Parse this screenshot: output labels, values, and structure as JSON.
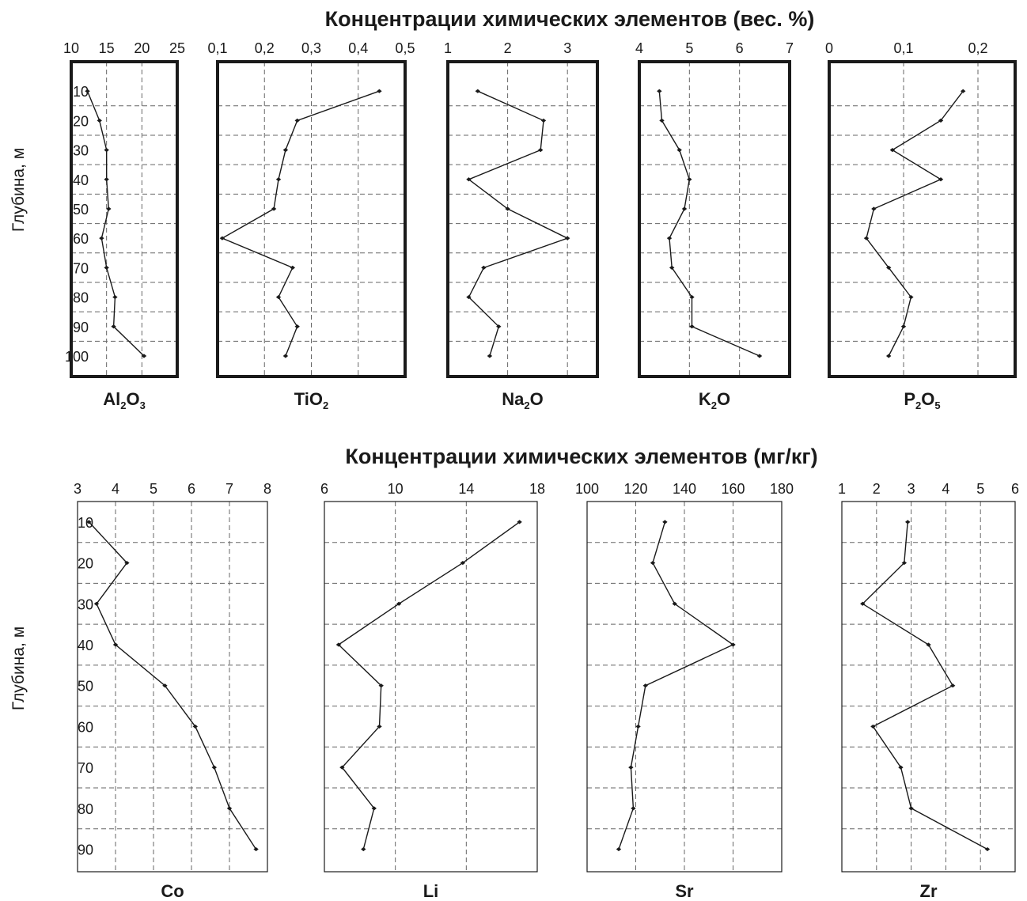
{
  "chart_data": [
    {
      "type": "line",
      "title": "Концентрации  химических элементов (вес. %)",
      "ylabel": "Глубина, м",
      "y_ticks": [
        "10",
        "20",
        "30",
        "40",
        "50",
        "60",
        "70",
        "80",
        "90",
        "100"
      ],
      "y_values": [
        10,
        20,
        30,
        40,
        50,
        60,
        70,
        80,
        90,
        100
      ],
      "ylim": [
        0,
        107
      ],
      "y_inverted": true,
      "grid": true,
      "panels": [
        {
          "id": "al2o3",
          "name": "Al2O3",
          "name_base": "Al",
          "name_parts": [
            [
              "Al",
              0
            ],
            [
              "2",
              1
            ],
            [
              "O",
              0
            ],
            [
              "3",
              1
            ]
          ],
          "xlim": [
            10,
            25
          ],
          "x_ticks": [
            "10",
            "15",
            "20",
            "25"
          ],
          "x_tick_values": [
            10,
            15,
            20,
            25
          ],
          "x": [
            12.3,
            14.0,
            15.0,
            15.0,
            15.3,
            14.3,
            15.0,
            16.2,
            16.0,
            20.3
          ]
        },
        {
          "id": "tio2",
          "name": "TiO2",
          "name_parts": [
            [
              "TiO",
              0
            ],
            [
              "2",
              1
            ]
          ],
          "xlim": [
            0.1,
            0.5
          ],
          "x_ticks": [
            "0,1",
            "0,2",
            "0,3",
            "0,4",
            "0,5"
          ],
          "x_tick_values": [
            0.1,
            0.2,
            0.3,
            0.4,
            0.5
          ],
          "x": [
            0.445,
            0.27,
            0.245,
            0.23,
            0.22,
            0.11,
            0.26,
            0.23,
            0.27,
            0.245
          ]
        },
        {
          "id": "na2o",
          "name": "Na2O",
          "name_parts": [
            [
              "Na",
              0
            ],
            [
              "2",
              1
            ],
            [
              "O",
              0
            ]
          ],
          "xlim": [
            1,
            3.5
          ],
          "x_ticks": [
            "1",
            "2",
            "3"
          ],
          "x_tick_values": [
            1,
            2,
            3
          ],
          "x": [
            1.5,
            2.6,
            2.55,
            1.35,
            2.0,
            3.0,
            1.6,
            1.35,
            1.85,
            1.7
          ]
        },
        {
          "id": "k2o",
          "name": "K2O",
          "name_parts": [
            [
              "K",
              0
            ],
            [
              "2",
              1
            ],
            [
              "O",
              0
            ]
          ],
          "xlim": [
            4,
            7
          ],
          "x_ticks": [
            "4",
            "5",
            "6",
            "7"
          ],
          "x_tick_values": [
            4,
            5,
            6,
            7
          ],
          "x": [
            4.4,
            4.45,
            4.8,
            5.0,
            4.9,
            4.6,
            4.65,
            5.05,
            5.05,
            6.4
          ]
        },
        {
          "id": "p2o5",
          "name": "P2O5",
          "name_parts": [
            [
              "P",
              0
            ],
            [
              "2",
              1
            ],
            [
              "O",
              0
            ],
            [
              "5",
              1
            ]
          ],
          "xlim": [
            0,
            0.25
          ],
          "x_ticks": [
            "0",
            "0,1",
            "0,2"
          ],
          "x_tick_values": [
            0,
            0.1,
            0.2
          ],
          "x": [
            0.18,
            0.15,
            0.085,
            0.15,
            0.06,
            0.05,
            0.08,
            0.11,
            0.1,
            0.08
          ]
        }
      ]
    },
    {
      "type": "line",
      "title": "Концентрации  химических элементов (мг/кг)",
      "ylabel": "Глубина, м",
      "y_ticks": [
        "10",
        "20",
        "30",
        "40",
        "50",
        "60",
        "70",
        "80",
        "90"
      ],
      "y_values": [
        10,
        20,
        30,
        40,
        50,
        60,
        70,
        80,
        90
      ],
      "ylim": [
        5,
        95.5
      ],
      "y_inverted": true,
      "grid": true,
      "panels": [
        {
          "id": "co",
          "name": "Co",
          "name_parts": [
            [
              "Co",
              0
            ]
          ],
          "xlim": [
            3,
            8
          ],
          "x_ticks": [
            "3",
            "4",
            "5",
            "6",
            "7",
            "8"
          ],
          "x_tick_values": [
            3,
            4,
            5,
            6,
            7,
            8
          ],
          "x": [
            3.3,
            4.3,
            3.5,
            4.0,
            5.3,
            6.1,
            6.6,
            7.0,
            7.7
          ]
        },
        {
          "id": "li",
          "name": "Li",
          "name_parts": [
            [
              "Li",
              0
            ]
          ],
          "xlim": [
            6,
            18
          ],
          "x_ticks": [
            "6",
            "10",
            "14",
            "18"
          ],
          "x_tick_values": [
            6,
            10,
            14,
            18
          ],
          "x": [
            17.0,
            13.8,
            10.2,
            6.8,
            9.2,
            9.1,
            7.0,
            8.8,
            8.2
          ]
        },
        {
          "id": "sr",
          "name": "Sr",
          "name_parts": [
            [
              "Sr",
              0
            ]
          ],
          "xlim": [
            100,
            180
          ],
          "x_ticks": [
            "100",
            "120",
            "140",
            "160",
            "180"
          ],
          "x_tick_values": [
            100,
            120,
            140,
            160,
            180
          ],
          "x": [
            132,
            127,
            136,
            160,
            124,
            121,
            118,
            119,
            113
          ]
        },
        {
          "id": "zr",
          "name": "Zr",
          "name_parts": [
            [
              "Zr",
              0
            ]
          ],
          "xlim": [
            1,
            6
          ],
          "x_ticks": [
            "1",
            "2",
            "3",
            "4",
            "5",
            "6"
          ],
          "x_tick_values": [
            1,
            2,
            3,
            4,
            5,
            6
          ],
          "x": [
            2.9,
            2.8,
            1.6,
            3.5,
            4.2,
            1.9,
            2.7,
            3.0,
            5.2
          ]
        }
      ]
    }
  ]
}
